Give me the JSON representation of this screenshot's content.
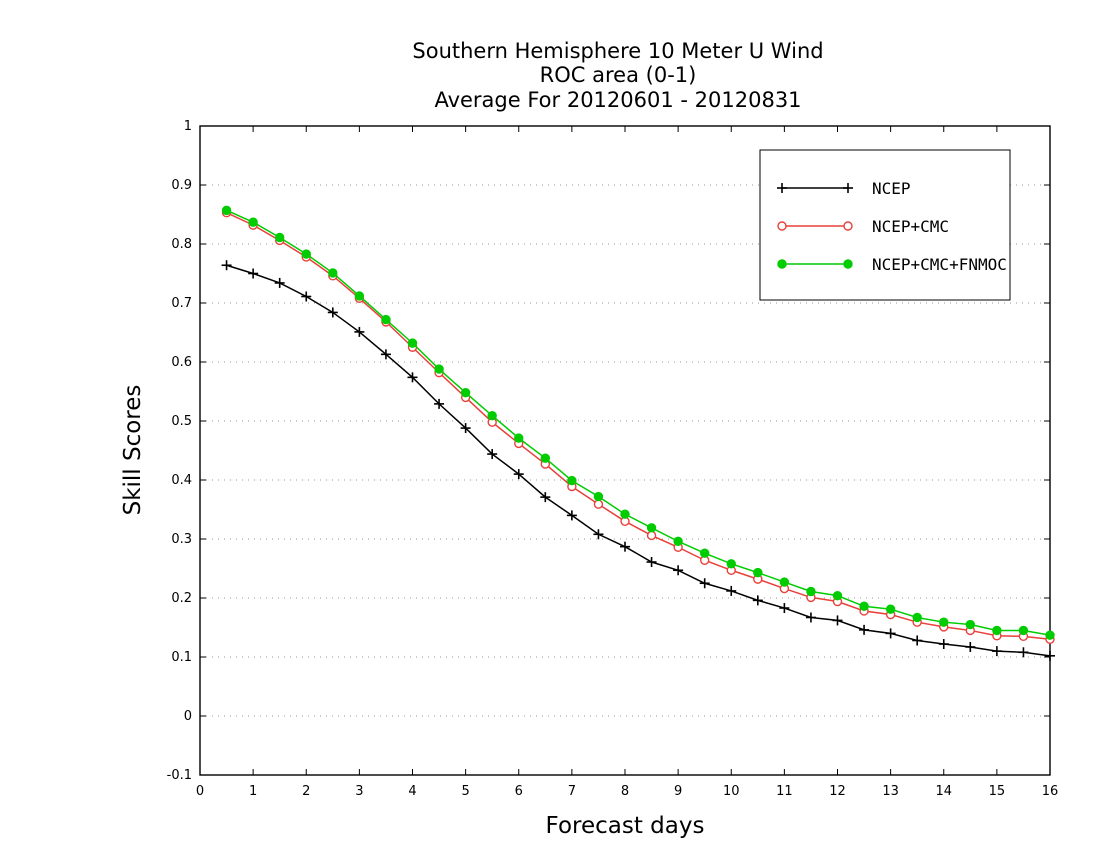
{
  "chart_data": {
    "type": "line",
    "title": [
      "Southern Hemisphere 10 Meter U Wind",
      "ROC area (0-1)",
      "Average For 20120601 - 20120831"
    ],
    "xlabel": "Forecast days",
    "ylabel": "Skill Scores",
    "xlim": [
      0,
      16
    ],
    "ylim": [
      -0.1,
      1
    ],
    "xticks": [
      0,
      1,
      2,
      3,
      4,
      5,
      6,
      7,
      8,
      9,
      10,
      11,
      12,
      13,
      14,
      15,
      16
    ],
    "yticks": [
      -0.1,
      0,
      0.1,
      0.2,
      0.3,
      0.4,
      0.5,
      0.6,
      0.7,
      0.8,
      0.9,
      1
    ],
    "ytick_labels": [
      "-0.1",
      "0",
      "0.1",
      "0.2",
      "0.3",
      "0.4",
      "0.5",
      "0.6",
      "0.7",
      "0.8",
      "0.9",
      "1"
    ],
    "grid": true,
    "legend_position": "top-right",
    "x": [
      0.5,
      1,
      1.5,
      2,
      2.5,
      3,
      3.5,
      4,
      4.5,
      5,
      5.5,
      6,
      6.5,
      7,
      7.5,
      8,
      8.5,
      9,
      9.5,
      10,
      10.5,
      11,
      11.5,
      12,
      12.5,
      13,
      13.5,
      14,
      14.5,
      15,
      15.5,
      16
    ],
    "series": [
      {
        "name": "NCEP",
        "color": "#000000",
        "marker": "plus",
        "values": [
          0.764,
          0.75,
          0.734,
          0.711,
          0.684,
          0.651,
          0.613,
          0.574,
          0.529,
          0.488,
          0.444,
          0.41,
          0.371,
          0.34,
          0.308,
          0.287,
          0.261,
          0.247,
          0.225,
          0.212,
          0.196,
          0.183,
          0.167,
          0.162,
          0.146,
          0.14,
          0.128,
          0.122,
          0.117,
          0.11,
          0.108,
          0.102
        ]
      },
      {
        "name": "NCEP+CMC",
        "color": "#e8403a",
        "marker": "open-circle",
        "values": [
          0.853,
          0.832,
          0.806,
          0.778,
          0.746,
          0.708,
          0.668,
          0.625,
          0.582,
          0.54,
          0.498,
          0.462,
          0.427,
          0.389,
          0.359,
          0.33,
          0.306,
          0.286,
          0.264,
          0.247,
          0.232,
          0.216,
          0.201,
          0.194,
          0.178,
          0.172,
          0.159,
          0.151,
          0.145,
          0.136,
          0.135,
          0.13
        ]
      },
      {
        "name": "NCEP+CMC+FNMOC",
        "color": "#00cc00",
        "marker": "filled-circle",
        "values": [
          0.857,
          0.837,
          0.811,
          0.783,
          0.751,
          0.712,
          0.672,
          0.632,
          0.588,
          0.548,
          0.509,
          0.471,
          0.437,
          0.399,
          0.372,
          0.342,
          0.319,
          0.296,
          0.276,
          0.258,
          0.243,
          0.227,
          0.211,
          0.204,
          0.186,
          0.181,
          0.167,
          0.159,
          0.155,
          0.145,
          0.145,
          0.137
        ]
      }
    ]
  }
}
